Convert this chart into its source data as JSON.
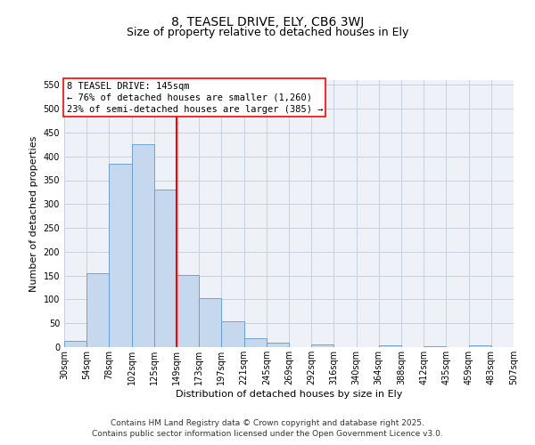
{
  "title": "8, TEASEL DRIVE, ELY, CB6 3WJ",
  "subtitle": "Size of property relative to detached houses in Ely",
  "xlabel": "Distribution of detached houses by size in Ely",
  "ylabel": "Number of detached properties",
  "bar_values": [
    13,
    155,
    385,
    425,
    330,
    152,
    102,
    55,
    18,
    10,
    0,
    5,
    0,
    0,
    3,
    0,
    2,
    0,
    3,
    0
  ],
  "categories": [
    "30sqm",
    "54sqm",
    "78sqm",
    "102sqm",
    "125sqm",
    "149sqm",
    "173sqm",
    "197sqm",
    "221sqm",
    "245sqm",
    "269sqm",
    "292sqm",
    "316sqm",
    "340sqm",
    "364sqm",
    "388sqm",
    "412sqm",
    "435sqm",
    "459sqm",
    "483sqm",
    "507sqm"
  ],
  "bar_color": "#c5d8ed",
  "bar_edge_color": "#5b9bd5",
  "grid_color": "#c8d0dc",
  "background_color": "#eef2f8",
  "vline_color": "red",
  "vline_pos": 5,
  "annotation_title": "8 TEASEL DRIVE: 145sqm",
  "annotation_line1": "← 76% of detached houses are smaller (1,260)",
  "annotation_line2": "23% of semi-detached houses are larger (385) →",
  "ylim": [
    0,
    560
  ],
  "yticks": [
    0,
    50,
    100,
    150,
    200,
    250,
    300,
    350,
    400,
    450,
    500,
    550
  ],
  "footer_line1": "Contains HM Land Registry data © Crown copyright and database right 2025.",
  "footer_line2": "Contains public sector information licensed under the Open Government Licence v3.0.",
  "title_fontsize": 10,
  "subtitle_fontsize": 9,
  "ylabel_fontsize": 8,
  "xlabel_fontsize": 8,
  "tick_fontsize": 7,
  "annotation_fontsize": 7.5,
  "footer_fontsize": 6.5
}
